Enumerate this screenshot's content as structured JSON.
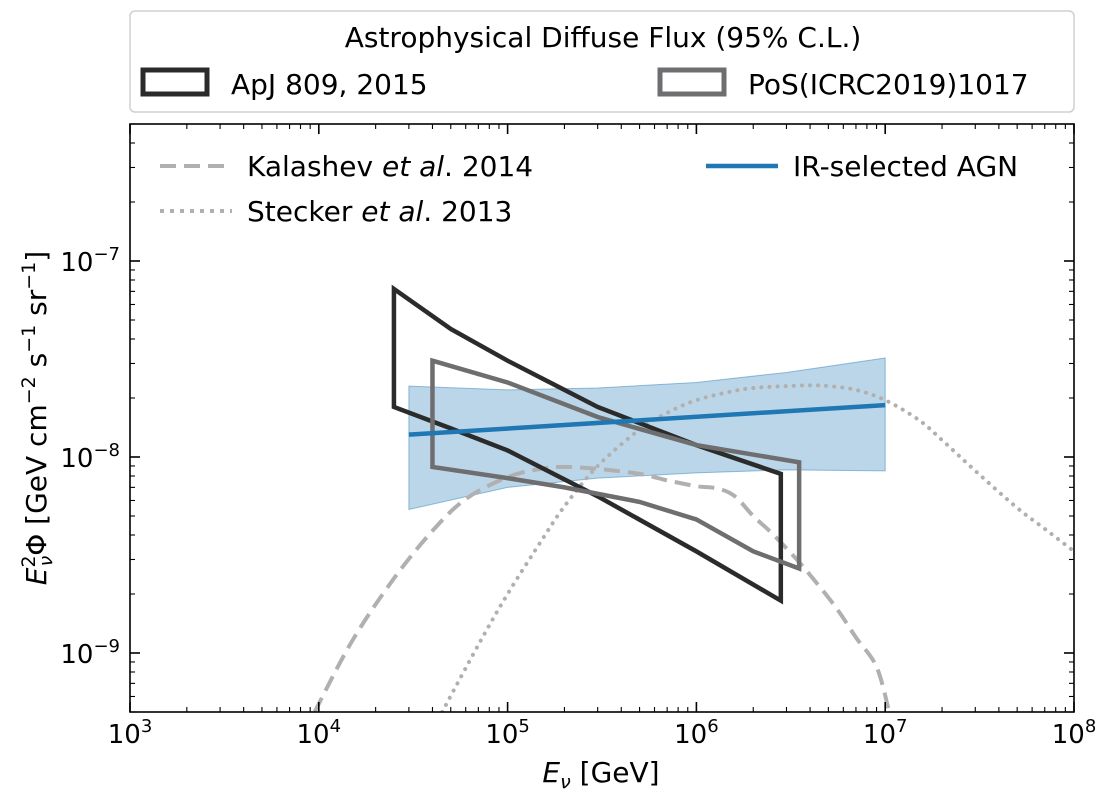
{
  "chart_data": {
    "type": "line",
    "xscale": "log",
    "yscale": "log",
    "xlim": [
      1000,
      100000000
    ],
    "ylim": [
      5e-10,
      5e-07
    ],
    "xlabel": {
      "base": "E",
      "sub": "ν",
      "unit": " [GeV]"
    },
    "ylabel": {
      "base": "E",
      "sup": "2",
      "sub": "ν",
      "rest": "Φ [GeV cm",
      "cm_exp": "−2",
      "s": " s",
      "s_exp": "−1",
      "sr": " sr",
      "sr_exp": "−1",
      "close": "]"
    },
    "xticks": [
      {
        "value": 1000,
        "base": "10",
        "exp": "3"
      },
      {
        "value": 10000,
        "base": "10",
        "exp": "4"
      },
      {
        "value": 100000,
        "base": "10",
        "exp": "5"
      },
      {
        "value": 1000000,
        "base": "10",
        "exp": "6"
      },
      {
        "value": 10000000,
        "base": "10",
        "exp": "7"
      },
      {
        "value": 100000000,
        "base": "10",
        "exp": "8"
      }
    ],
    "yticks": [
      {
        "value": 1e-09,
        "base": "10",
        "exp": "−9"
      },
      {
        "value": 1e-08,
        "base": "10",
        "exp": "−8"
      },
      {
        "value": 1e-07,
        "base": "10",
        "exp": "−7"
      }
    ],
    "top_legend": {
      "title": "Astrophysical Diffuse Flux (95% C.L.)",
      "entries": [
        {
          "label": "ApJ 809, 2015",
          "color": "#2b2b2b"
        },
        {
          "label": "PoS(ICRC2019)1017",
          "color": "#6e6e70"
        }
      ]
    },
    "inner_legend": [
      {
        "pre": "Kalashev ",
        "italic": "et al",
        "post": ". 2014",
        "style": "dashed",
        "color": "#b0b0b0"
      },
      {
        "pre": "Stecker ",
        "italic": "et al",
        "post": ". 2013",
        "style": "dotted",
        "color": "#b0b0b0"
      },
      {
        "label": "IR-selected AGN",
        "style": "solid",
        "color": "#1f77b4"
      }
    ],
    "series": [
      {
        "name": "ApJ 809, 2015",
        "kind": "band-outline",
        "color": "#2b2b2b",
        "points": [
          [
            25000,
            7.2e-08
          ],
          [
            50000,
            4.5e-08
          ],
          [
            100000,
            3.1e-08
          ],
          [
            300000,
            1.8e-08
          ],
          [
            1000000,
            1.15e-08
          ],
          [
            2800000,
            8.2e-09
          ],
          [
            2800000,
            1.85e-09
          ],
          [
            1000000,
            3.3e-09
          ],
          [
            300000,
            6.3e-09
          ],
          [
            100000,
            1.08e-08
          ],
          [
            50000,
            1.4e-08
          ],
          [
            25000,
            1.8e-08
          ]
        ]
      },
      {
        "name": "PoS(ICRC2019)1017",
        "kind": "band-outline",
        "color": "#6e6e70",
        "points": [
          [
            40000,
            3.1e-08
          ],
          [
            100000,
            2.4e-08
          ],
          [
            300000,
            1.6e-08
          ],
          [
            1000000,
            1.15e-08
          ],
          [
            3500000,
            9.4e-09
          ],
          [
            3500000,
            2.7e-09
          ],
          [
            2000000,
            3.3e-09
          ],
          [
            1000000,
            4.8e-09
          ],
          [
            500000,
            5.9e-09
          ],
          [
            200000,
            7e-09
          ],
          [
            100000,
            7.8e-09
          ],
          [
            40000,
            8.9e-09
          ]
        ]
      },
      {
        "name": "IR-selected AGN",
        "kind": "line",
        "color": "#1f77b4",
        "x": [
          30000,
          10000000
        ],
        "y": [
          1.3e-08,
          1.84e-08
        ]
      },
      {
        "name": "IR-selected AGN band",
        "kind": "band",
        "color": "#1f77b4",
        "x": [
          30000,
          100000,
          300000,
          1000000,
          3000000,
          10000000
        ],
        "upper": [
          2.3e-08,
          2.2e-08,
          2.25e-08,
          2.4e-08,
          2.7e-08,
          3.2e-08
        ],
        "lower": [
          5.4e-09,
          7e-09,
          7.8e-09,
          8.3e-09,
          8.6e-09,
          8.5e-09
        ]
      },
      {
        "name": "Kalashev et al. 2014",
        "kind": "line",
        "style": "dashed",
        "color": "#b0b0b0",
        "x": [
          9500,
          15000,
          25000,
          40000,
          60000,
          100000,
          150000,
          200000,
          300000,
          500000,
          700000,
          1000000,
          1300000,
          1600000,
          2000000,
          2500000,
          3200000,
          4000000,
          5500000,
          7000000,
          9000000,
          10500000
        ],
        "y": [
          5e-10,
          1.15e-09,
          2.4e-09,
          4.2e-09,
          6.1e-09,
          7.9e-09,
          8.7e-09,
          8.9e-09,
          8.7e-09,
          8.2e-09,
          7.6e-09,
          7.1e-09,
          6.9e-09,
          6.3e-09,
          5e-09,
          4.1e-09,
          3.2e-09,
          2.5e-09,
          1.7e-09,
          1.2e-09,
          8.5e-10,
          5e-10
        ]
      },
      {
        "name": "Stecker et al. 2013",
        "kind": "line",
        "style": "dotted",
        "color": "#b0b0b0",
        "x": [
          45000,
          70000,
          100000,
          150000,
          200000,
          300000,
          500000,
          700000,
          1000000,
          1500000,
          2000000,
          3000000,
          4000000,
          5000000,
          7000000,
          10000000,
          15000000,
          20000000,
          30000000,
          50000000,
          70000000,
          100000000
        ],
        "y": [
          5e-10,
          1.1e-09,
          2e-09,
          3.7e-09,
          5.6e-09,
          9e-09,
          1.38e-08,
          1.68e-08,
          1.95e-08,
          2.15e-08,
          2.25e-08,
          2.3e-08,
          2.32e-08,
          2.3e-08,
          2.2e-08,
          1.95e-08,
          1.55e-08,
          1.22e-08,
          8.5e-09,
          5.5e-09,
          4.3e-09,
          3.3e-09
        ]
      }
    ]
  }
}
